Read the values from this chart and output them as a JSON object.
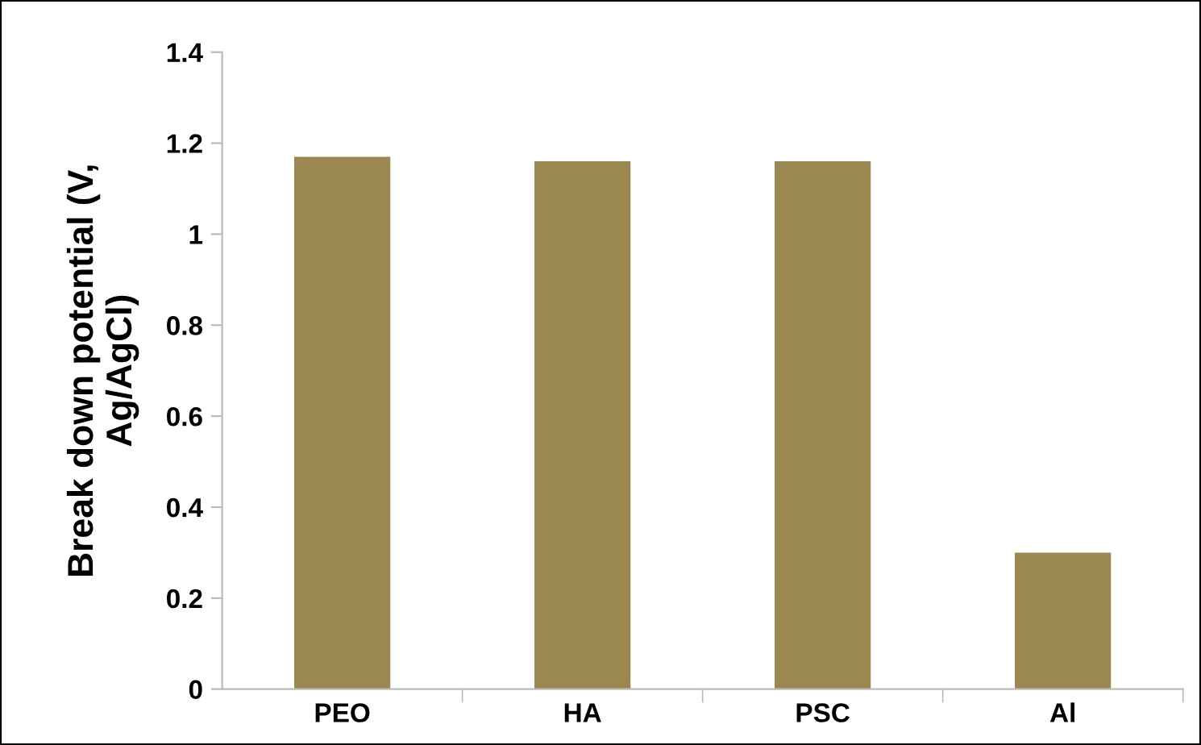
{
  "chart_data": {
    "type": "bar",
    "ylabel": "Break down potential (V,\nAg/AgCl)",
    "categories": [
      "PEO",
      "HA",
      "PSC",
      "Al"
    ],
    "values": [
      1.17,
      1.16,
      1.16,
      0.3
    ],
    "color": "#9a8850",
    "ylim": [
      0,
      1.4
    ],
    "yticks": [
      0,
      0.2,
      0.4,
      0.6,
      0.8,
      1,
      1.2,
      1.4
    ],
    "grid": false
  }
}
